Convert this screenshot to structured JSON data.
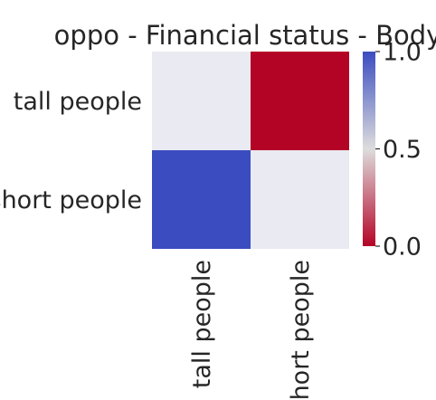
{
  "chart_data": {
    "type": "heatmap",
    "title": "oppo - Financial status - Body",
    "x_labels": [
      "tall people",
      "short people"
    ],
    "y_labels": [
      "tall people",
      "short people"
    ],
    "values": [
      [
        null,
        0.0
      ],
      [
        1.0,
        null
      ]
    ],
    "missing_color": "#eaeaf2",
    "colormap": "coolwarm_r",
    "colormap_stops": [
      "#b40426",
      "#dddddd",
      "#3b4cc0"
    ],
    "vmin": 0.0,
    "vmax": 1.0,
    "colorbar_ticks": [
      0.0,
      0.5,
      1.0
    ],
    "colorbar_tick_labels": [
      "0.0",
      "0.5",
      "1.0"
    ]
  }
}
